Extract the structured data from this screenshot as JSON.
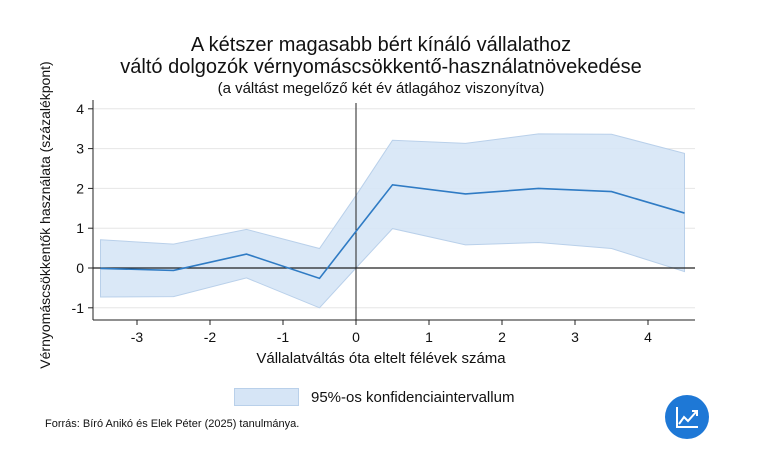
{
  "chart_data": {
    "type": "line",
    "title": "A kétszer magasabb bért kínáló vállalathoz",
    "title_line2": "váltó dolgozók vérnyomáscsökkentő-használatnövekedése",
    "subtitle": "(a váltást megelőző két év átlagához viszonyítva)",
    "xlabel": "Vállalatváltás óta eltelt félévek száma",
    "ylabel": "Vérnyomáscsökkentők használata (százalékpont)",
    "xlim": [
      -3.9,
      4.7
    ],
    "ylim": [
      -1.3,
      4.2
    ],
    "xticks": [
      -3,
      -2,
      -1,
      0,
      1,
      2,
      3,
      4
    ],
    "yticks": [
      -1,
      0,
      1,
      2,
      3,
      4
    ],
    "grid": "horizontal",
    "x": [
      -3.5,
      -2.5,
      -1.5,
      -0.5,
      0,
      0.5,
      1.5,
      2.5,
      3.5,
      4.5
    ],
    "estimate": [
      -0.01,
      -0.06,
      0.35,
      -0.26,
      0.92,
      2.09,
      1.86,
      2.0,
      1.92,
      1.38
    ],
    "ci_lower": [
      -0.73,
      -0.72,
      -0.25,
      -1.0,
      0.0,
      0.99,
      0.58,
      0.64,
      0.49,
      -0.09
    ],
    "ci_upper": [
      0.71,
      0.6,
      0.97,
      0.49,
      1.82,
      3.21,
      3.13,
      3.37,
      3.36,
      2.88
    ],
    "legend": [
      "95%-os konfidenciaintervallum"
    ],
    "legend_placement": "bottom",
    "colors": {
      "line": "#2f7bc4",
      "band": "#d6e5f6",
      "band_edge": "#b9d0ea"
    }
  },
  "source": "Forrás: Bíró Anikó és Elek Péter (2025) tanulmánya.",
  "logo_icon": "trend-chart-icon"
}
